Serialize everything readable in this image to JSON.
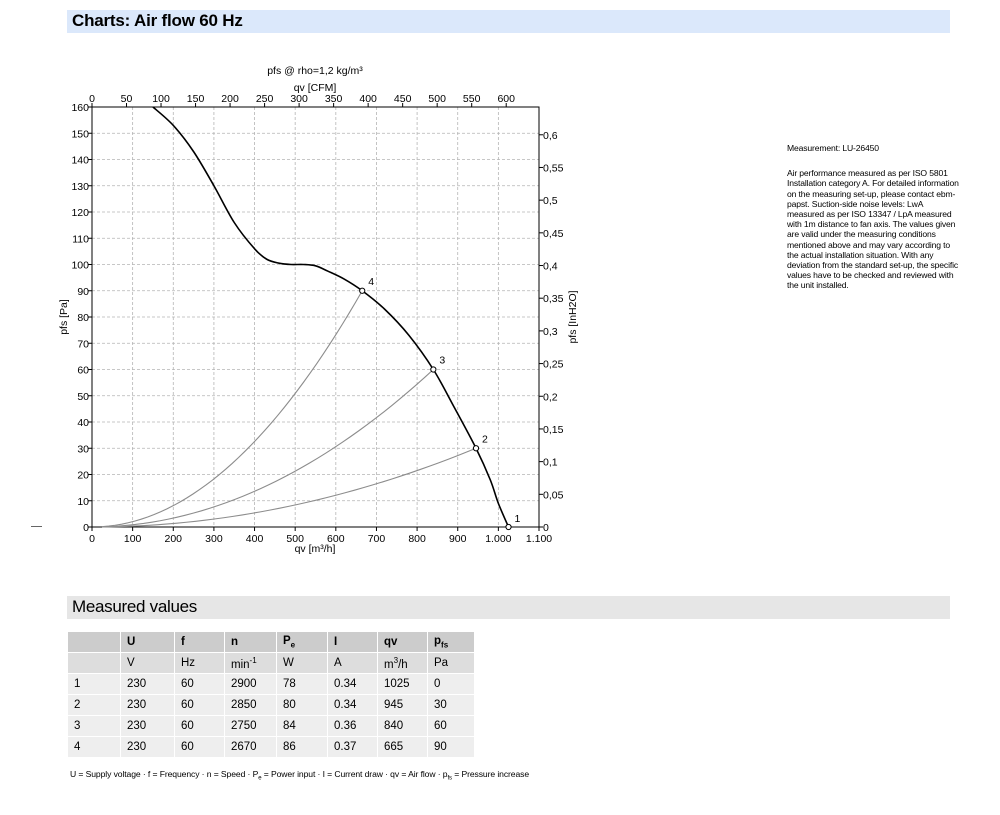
{
  "header": {
    "title": "Charts: Air flow 60 Hz"
  },
  "side_note": {
    "measurement": "Measurement: LU-26450",
    "text": "Air performance measured as per ISO 5801 Installation category A. For detailed information on the measuring set-up, please contact ebm-papst. Suction-side noise levels: LwA measured as per ISO 13347 / LpA measured with 1m distance to fan axis. The values given are valid under the measuring conditions mentioned above and may vary according to the actual installation situation. With any deviation from the standard set-up, the specific values have to be checked and reviewed with the unit installed."
  },
  "chart_data": {
    "type": "line",
    "title": "pfs @ rho=1,2 kg/m³",
    "xlabel": "qv [m³/h]",
    "x2label": "qv [CFM]",
    "ylabel": "pfs [Pa]",
    "y2label": "pfs [InH2O]",
    "xlim": [
      0,
      1100
    ],
    "ylim": [
      0,
      160
    ],
    "x2lim": [
      0,
      647.5
    ],
    "y2lim": [
      0,
      0.6425
    ],
    "grid": true,
    "x_ticks": [
      0,
      100,
      200,
      300,
      400,
      500,
      600,
      700,
      800,
      900,
      1000,
      1100
    ],
    "x_tick_labels": [
      "0",
      "100",
      "200",
      "300",
      "400",
      "500",
      "600",
      "700",
      "800",
      "900",
      "1.000",
      "1.100"
    ],
    "y_ticks": [
      0,
      10,
      20,
      30,
      40,
      50,
      60,
      70,
      80,
      90,
      100,
      110,
      120,
      130,
      140,
      150,
      160
    ],
    "y_tick_labels": [
      "0",
      "10",
      "20",
      "30",
      "40",
      "50",
      "60",
      "70",
      "80",
      "90",
      "100",
      "110",
      "120",
      "130",
      "140",
      "150",
      "160"
    ],
    "x2_ticks": [
      0,
      50,
      100,
      150,
      200,
      250,
      300,
      350,
      400,
      450,
      500,
      550,
      600
    ],
    "x2_tick_labels": [
      "0",
      "50",
      "100",
      "150",
      "200",
      "250",
      "300",
      "350",
      "400",
      "450",
      "500",
      "550",
      "600"
    ],
    "y2_ticks": [
      0,
      0.05,
      0.1,
      0.15,
      0.2,
      0.25,
      0.3,
      0.35,
      0.4,
      0.45,
      0.5,
      0.55,
      0.6
    ],
    "y2_tick_labels": [
      "0",
      "0,05",
      "0,1",
      "0,15",
      "0,2",
      "0,25",
      "0,3",
      "0,35",
      "0,4",
      "0,45",
      "0,5",
      "0,55",
      "0,6"
    ],
    "fan_curve": {
      "x": [
        150,
        200,
        250,
        300,
        350,
        400,
        430,
        460,
        490,
        520,
        550,
        580,
        620,
        665,
        720,
        780,
        840,
        890,
        945,
        980,
        1000,
        1025
      ],
      "y": [
        160,
        153,
        143,
        130,
        116,
        106,
        102,
        100.5,
        100,
        100,
        99.5,
        97.5,
        94.5,
        90,
        83,
        73,
        60,
        46,
        30,
        18,
        9,
        0
      ]
    },
    "system_curves": [
      {
        "point": 2,
        "x_end": 945,
        "y_end": 30
      },
      {
        "point": 3,
        "x_end": 840,
        "y_end": 60
      },
      {
        "point": 4,
        "x_end": 665,
        "y_end": 90
      }
    ],
    "operating_points": [
      {
        "label": "1",
        "x": 1025,
        "y": 0
      },
      {
        "label": "2",
        "x": 945,
        "y": 30
      },
      {
        "label": "3",
        "x": 840,
        "y": 60
      },
      {
        "label": "4",
        "x": 665,
        "y": 90
      }
    ]
  },
  "measured": {
    "title": "Measured values",
    "headers": [
      "",
      "U",
      "f",
      "n",
      "Pe",
      "I",
      "qv",
      "pfs"
    ],
    "units": [
      "",
      "V",
      "Hz",
      "min-1",
      "W",
      "A",
      "m3/h",
      "Pa"
    ],
    "rows": [
      [
        "1",
        "230",
        "60",
        "2900",
        "78",
        "0.34",
        "1025",
        "0"
      ],
      [
        "2",
        "230",
        "60",
        "2850",
        "80",
        "0.34",
        "945",
        "30"
      ],
      [
        "3",
        "230",
        "60",
        "2750",
        "84",
        "0.36",
        "840",
        "60"
      ],
      [
        "4",
        "230",
        "60",
        "2670",
        "86",
        "0.37",
        "665",
        "90"
      ]
    ],
    "legend": "U = Supply voltage · f = Frequency · n = Speed · Pe = Power input · I = Current draw · qv = Air flow · pfs = Pressure increase"
  }
}
